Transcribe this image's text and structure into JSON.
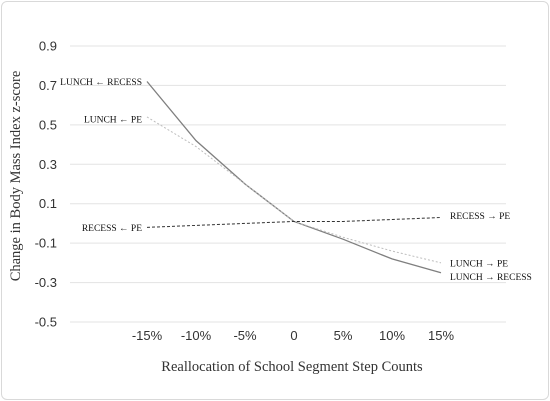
{
  "chart_data": {
    "type": "line",
    "title": "",
    "xlabel": "Reallocation of School Segment Step Counts",
    "ylabel": "Change in Body Mass Index z-score",
    "x_categories": [
      "-15%",
      "-10%",
      "-5%",
      "0",
      "5%",
      "10%",
      "15%"
    ],
    "x": [
      -15,
      -10,
      -5,
      0,
      5,
      10,
      15
    ],
    "ylim": [
      -0.5,
      0.9
    ],
    "y_ticks": [
      0.9,
      0.7,
      0.5,
      0.3,
      0.1,
      -0.1,
      -0.3,
      -0.5
    ],
    "y_tick_labels": [
      "0.9",
      "0.7",
      "0.5",
      "0.3",
      "0.1",
      "-0.1",
      "-0.3",
      "-0.5"
    ],
    "grid": true,
    "legend": "none",
    "series": [
      {
        "name": "LUNCH ← RECESS / LUNCH → RECESS",
        "style": "solid",
        "color": "#7f7f7f",
        "values": [
          0.72,
          0.42,
          0.2,
          0.01,
          -0.08,
          -0.18,
          -0.25
        ]
      },
      {
        "name": "LUNCH ← PE / LUNCH → PE",
        "style": "dotted",
        "color": "#bdbdbd",
        "values": [
          0.54,
          0.39,
          0.2,
          0.01,
          -0.07,
          -0.14,
          -0.2
        ]
      },
      {
        "name": "RECESS ← PE / RECESS → PE",
        "style": "dashed",
        "color": "#333333",
        "values": [
          -0.02,
          -0.01,
          0.0,
          0.01,
          0.01,
          0.02,
          0.03
        ]
      }
    ],
    "annotations": [
      {
        "text": "LUNCH ← RECESS",
        "x": -15,
        "y": 0.72,
        "anchor": "end"
      },
      {
        "text": "LUNCH ← PE",
        "x": -15,
        "y": 0.53,
        "anchor": "end"
      },
      {
        "text": "RECESS ← PE",
        "x": -15,
        "y": -0.02,
        "anchor": "end"
      },
      {
        "text": "RECESS → PE",
        "x": 15,
        "y": 0.04,
        "anchor": "start"
      },
      {
        "text": "LUNCH → PE",
        "x": 15,
        "y": -0.2,
        "anchor": "start"
      },
      {
        "text": "LUNCH → RECESS",
        "x": 15,
        "y": -0.27,
        "anchor": "start"
      }
    ]
  }
}
